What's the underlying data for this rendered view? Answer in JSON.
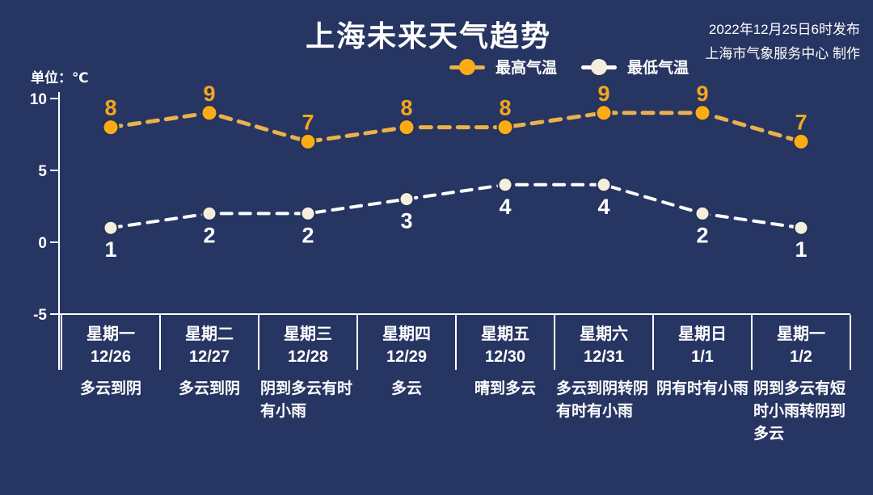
{
  "header": {
    "title": "上海未来天气趋势",
    "publish_line1": "2022年12月25日6时发布",
    "publish_line2": "上海市气象服务中心 制作",
    "unit_label": "单位：℃"
  },
  "legend": {
    "high_label": "最高气温",
    "low_label": "最低气温"
  },
  "colors": {
    "background": "#273562",
    "axis": "#FFFFFF",
    "text": "#FFFFFF",
    "high_dash": "#EAB24C",
    "high_dot": "#FBAC15",
    "high_label": "#F4A71C",
    "low_dash": "#FFFFFF",
    "low_dot": "#F6EEDC",
    "low_label": "#FFFFFF",
    "dot_outline": "#243258"
  },
  "chart_data": {
    "type": "line",
    "title": "上海未来天气趋势",
    "ylabel": "单位：℃",
    "ylim": [
      -5,
      10
    ],
    "yticks": [
      10,
      5,
      0,
      -5
    ],
    "grid": false,
    "legend_position": "top",
    "line_style": "dashed",
    "categories": [
      {
        "weekday": "星期一",
        "date": "12/26",
        "weather": "多云到阴"
      },
      {
        "weekday": "星期二",
        "date": "12/27",
        "weather": "多云到阴"
      },
      {
        "weekday": "星期三",
        "date": "12/28",
        "weather": "阴到多云有时有小雨"
      },
      {
        "weekday": "星期四",
        "date": "12/29",
        "weather": "多云"
      },
      {
        "weekday": "星期五",
        "date": "12/30",
        "weather": "晴到多云"
      },
      {
        "weekday": "星期六",
        "date": "12/31",
        "weather": "多云到阴转阴有时有小雨"
      },
      {
        "weekday": "星期日",
        "date": "1/1",
        "weather": "阴有时有小雨"
      },
      {
        "weekday": "星期一",
        "date": "1/2",
        "weather": "阴到多云有短时小雨转阴到多云"
      }
    ],
    "series": [
      {
        "name": "最高气温",
        "values": [
          8,
          9,
          7,
          8,
          8,
          9,
          9,
          7
        ]
      },
      {
        "name": "最低气温",
        "values": [
          1,
          2,
          2,
          3,
          4,
          4,
          2,
          1
        ]
      }
    ]
  }
}
